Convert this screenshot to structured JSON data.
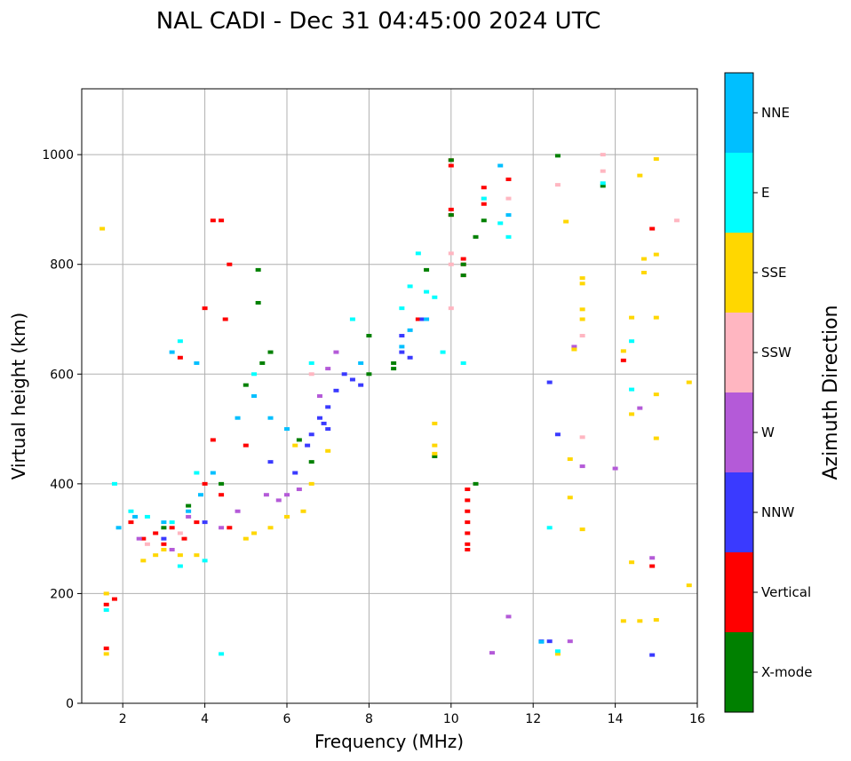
{
  "chart_data": {
    "type": "scatter",
    "title": "NAL CADI - Dec 31 04:45:00 2024 UTC",
    "xlabel": "Frequency (MHz)",
    "ylabel": "Virtual height (km)",
    "xlim": [
      1,
      16
    ],
    "ylim": [
      0,
      1120
    ],
    "xticks": [
      2,
      4,
      6,
      8,
      10,
      12,
      14,
      16
    ],
    "yticks": [
      0,
      200,
      400,
      600,
      800,
      1000
    ],
    "grid": true,
    "colorbar": {
      "title": "Azimuth Direction",
      "categories": [
        {
          "name": "NNE",
          "color": "#00bfff"
        },
        {
          "name": "E",
          "color": "#00ffff"
        },
        {
          "name": "SSE",
          "color": "#ffd700"
        },
        {
          "name": "SSW",
          "color": "#ffb6c1"
        },
        {
          "name": "W",
          "color": "#b45ad8"
        },
        {
          "name": "NNW",
          "color": "#3a3aff"
        },
        {
          "name": "Vertical",
          "color": "#ff0000"
        },
        {
          "name": "X-mode",
          "color": "#008000"
        }
      ]
    },
    "series": [
      {
        "name": "Vertical",
        "points": [
          [
            1.6,
            180
          ],
          [
            1.6,
            100
          ],
          [
            1.8,
            190
          ],
          [
            2.2,
            330
          ],
          [
            2.5,
            300
          ],
          [
            2.8,
            310
          ],
          [
            3.0,
            290
          ],
          [
            3.2,
            320
          ],
          [
            3.5,
            300
          ],
          [
            3.8,
            330
          ],
          [
            4.0,
            720
          ],
          [
            4.0,
            400
          ],
          [
            4.2,
            480
          ],
          [
            4.2,
            880
          ],
          [
            4.4,
            880
          ],
          [
            4.5,
            700
          ],
          [
            4.6,
            800
          ],
          [
            4.4,
            380
          ],
          [
            4.6,
            320
          ],
          [
            5.0,
            470
          ],
          [
            10.0,
            990
          ],
          [
            10.0,
            980
          ],
          [
            10.0,
            900
          ],
          [
            10.0,
            890
          ],
          [
            10.3,
            810
          ],
          [
            10.3,
            780
          ],
          [
            10.4,
            390
          ],
          [
            10.4,
            370
          ],
          [
            10.4,
            350
          ],
          [
            10.4,
            330
          ],
          [
            10.4,
            310
          ],
          [
            10.4,
            290
          ],
          [
            10.4,
            280
          ],
          [
            10.8,
            940
          ],
          [
            10.8,
            910
          ],
          [
            11.4,
            955
          ],
          [
            14.2,
            625
          ],
          [
            14.9,
            865
          ],
          [
            14.9,
            250
          ],
          [
            3.4,
            630
          ],
          [
            9.2,
            700
          ],
          [
            10.3,
            800
          ]
        ]
      },
      {
        "name": "X-mode",
        "points": [
          [
            3.6,
            360
          ],
          [
            4.4,
            400
          ],
          [
            5.3,
            790
          ],
          [
            5.3,
            730
          ],
          [
            5.4,
            620
          ],
          [
            5.6,
            640
          ],
          [
            6.3,
            480
          ],
          [
            8.0,
            670
          ],
          [
            8.0,
            600
          ],
          [
            8.6,
            610
          ],
          [
            8.6,
            620
          ],
          [
            9.4,
            790
          ],
          [
            9.6,
            450
          ],
          [
            10.0,
            990
          ],
          [
            10.0,
            890
          ],
          [
            10.3,
            800
          ],
          [
            10.3,
            780
          ],
          [
            10.6,
            850
          ],
          [
            10.6,
            400
          ],
          [
            10.8,
            880
          ],
          [
            12.6,
            998
          ],
          [
            13.7,
            943
          ],
          [
            3.0,
            320
          ],
          [
            5.0,
            580
          ],
          [
            6.6,
            440
          ]
        ]
      },
      {
        "name": "NNW",
        "points": [
          [
            6.6,
            490
          ],
          [
            6.8,
            520
          ],
          [
            7.0,
            540
          ],
          [
            7.2,
            570
          ],
          [
            7.4,
            600
          ],
          [
            7.6,
            590
          ],
          [
            7.8,
            580
          ],
          [
            6.5,
            470
          ],
          [
            6.9,
            510
          ],
          [
            8.8,
            640
          ],
          [
            8.8,
            670
          ],
          [
            9.0,
            630
          ],
          [
            9.3,
            700
          ],
          [
            12.4,
            585
          ],
          [
            12.6,
            490
          ],
          [
            12.2,
            113
          ],
          [
            12.4,
            113
          ],
          [
            14.9,
            88
          ],
          [
            5.6,
            440
          ],
          [
            6.2,
            420
          ],
          [
            7.0,
            500
          ],
          [
            4.0,
            330
          ],
          [
            3.0,
            300
          ]
        ]
      },
      {
        "name": "W",
        "points": [
          [
            4.4,
            320
          ],
          [
            4.8,
            350
          ],
          [
            5.5,
            380
          ],
          [
            5.8,
            370
          ],
          [
            6.0,
            380
          ],
          [
            6.3,
            390
          ],
          [
            7.2,
            640
          ],
          [
            7.0,
            610
          ],
          [
            6.8,
            560
          ],
          [
            13.0,
            650
          ],
          [
            13.2,
            432
          ],
          [
            14.0,
            428
          ],
          [
            14.6,
            538
          ],
          [
            14.9,
            265
          ],
          [
            11.4,
            158
          ],
          [
            11.0,
            92
          ],
          [
            12.9,
            113
          ],
          [
            3.6,
            340
          ],
          [
            3.2,
            280
          ],
          [
            2.4,
            300
          ]
        ]
      },
      {
        "name": "SSW",
        "points": [
          [
            1.6,
            200
          ],
          [
            10.0,
            820
          ],
          [
            10.0,
            800
          ],
          [
            10.0,
            720
          ],
          [
            10.8,
            920
          ],
          [
            11.4,
            920
          ],
          [
            12.6,
            945
          ],
          [
            13.7,
            1000
          ],
          [
            13.7,
            970
          ],
          [
            13.2,
            485
          ],
          [
            15.5,
            880
          ],
          [
            13.2,
            670
          ],
          [
            6.6,
            600
          ],
          [
            3.4,
            310
          ],
          [
            2.6,
            290
          ]
        ]
      },
      {
        "name": "SSE",
        "points": [
          [
            1.5,
            865
          ],
          [
            1.6,
            200
          ],
          [
            1.6,
            90
          ],
          [
            2.5,
            260
          ],
          [
            2.8,
            270
          ],
          [
            3.0,
            280
          ],
          [
            3.4,
            270
          ],
          [
            3.8,
            270
          ],
          [
            5.0,
            300
          ],
          [
            5.2,
            310
          ],
          [
            5.6,
            320
          ],
          [
            6.0,
            340
          ],
          [
            6.4,
            350
          ],
          [
            6.6,
            400
          ],
          [
            7.0,
            460
          ],
          [
            9.6,
            510
          ],
          [
            9.6,
            470
          ],
          [
            9.6,
            455
          ],
          [
            12.8,
            878
          ],
          [
            13.2,
            775
          ],
          [
            13.2,
            765
          ],
          [
            13.2,
            718
          ],
          [
            13.2,
            700
          ],
          [
            13.0,
            645
          ],
          [
            12.9,
            445
          ],
          [
            12.9,
            375
          ],
          [
            13.2,
            317
          ],
          [
            14.2,
            642
          ],
          [
            14.6,
            962
          ],
          [
            14.7,
            810
          ],
          [
            14.7,
            785
          ],
          [
            15.0,
            992
          ],
          [
            15.0,
            818
          ],
          [
            15.0,
            703
          ],
          [
            15.0,
            563
          ],
          [
            15.0,
            483
          ],
          [
            14.4,
            703
          ],
          [
            14.4,
            527
          ],
          [
            14.4,
            257
          ],
          [
            14.2,
            150
          ],
          [
            14.6,
            150
          ],
          [
            15.0,
            152
          ],
          [
            15.8,
            585
          ],
          [
            15.8,
            215
          ],
          [
            12.6,
            90
          ],
          [
            6.2,
            470
          ]
        ]
      },
      {
        "name": "E",
        "points": [
          [
            1.6,
            170
          ],
          [
            1.8,
            400
          ],
          [
            2.2,
            350
          ],
          [
            2.6,
            340
          ],
          [
            3.2,
            330
          ],
          [
            3.4,
            250
          ],
          [
            3.8,
            420
          ],
          [
            4.0,
            260
          ],
          [
            4.4,
            90
          ],
          [
            5.2,
            600
          ],
          [
            6.6,
            620
          ],
          [
            7.6,
            700
          ],
          [
            8.8,
            720
          ],
          [
            9.0,
            760
          ],
          [
            9.2,
            820
          ],
          [
            9.4,
            750
          ],
          [
            9.6,
            740
          ],
          [
            9.8,
            640
          ],
          [
            10.3,
            620
          ],
          [
            10.8,
            920
          ],
          [
            11.2,
            875
          ],
          [
            11.4,
            850
          ],
          [
            13.7,
            948
          ],
          [
            14.4,
            660
          ],
          [
            14.4,
            572
          ],
          [
            12.4,
            320
          ],
          [
            12.6,
            95
          ],
          [
            3.4,
            660
          ]
        ]
      },
      {
        "name": "NNE",
        "points": [
          [
            1.9,
            320
          ],
          [
            2.3,
            340
          ],
          [
            3.0,
            330
          ],
          [
            3.6,
            350
          ],
          [
            3.9,
            380
          ],
          [
            4.2,
            420
          ],
          [
            4.8,
            520
          ],
          [
            5.2,
            560
          ],
          [
            5.6,
            520
          ],
          [
            6.0,
            500
          ],
          [
            7.8,
            620
          ],
          [
            8.8,
            650
          ],
          [
            9.0,
            680
          ],
          [
            9.4,
            700
          ],
          [
            11.2,
            980
          ],
          [
            11.4,
            890
          ],
          [
            12.2,
            112
          ],
          [
            3.2,
            640
          ],
          [
            3.8,
            620
          ]
        ]
      }
    ]
  }
}
